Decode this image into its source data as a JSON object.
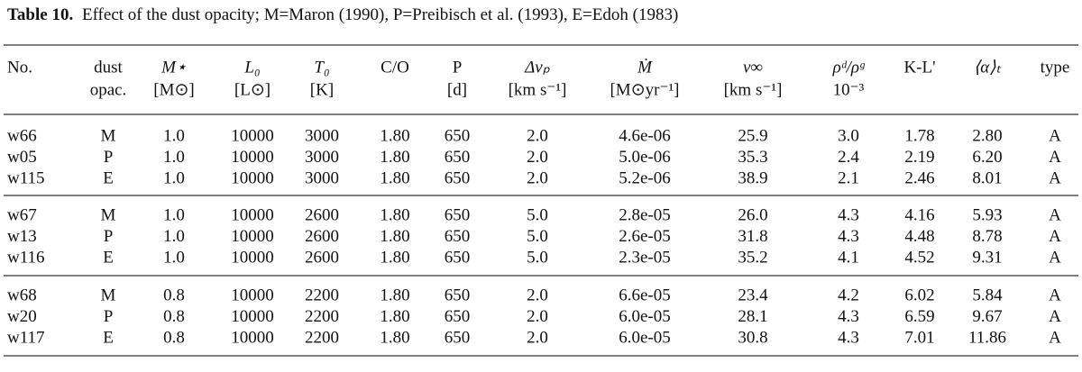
{
  "caption": {
    "label": "Table 10.",
    "text": "Effect of the dust opacity; M=Maron (1990), P=Preibisch et al. (1993), E=Edoh (1983)"
  },
  "table": {
    "header": [
      [
        "No.",
        ""
      ],
      [
        "dust",
        "opac."
      ],
      [
        "M⋆",
        "[M⊙]"
      ],
      [
        "L₀",
        "[L⊙]"
      ],
      [
        "T₀",
        "[K]"
      ],
      [
        "C/O",
        ""
      ],
      [
        "P",
        "[d]"
      ],
      [
        "Δvₚ",
        "[km s⁻¹]"
      ],
      [
        "Ṁ",
        "[M⊙yr⁻¹]"
      ],
      [
        "v∞",
        "[km s⁻¹]"
      ],
      [
        "ρᵈ/ρᵍ",
        "10⁻³"
      ],
      [
        "K-L'",
        ""
      ],
      [
        "⟨α⟩ₜ",
        ""
      ],
      [
        "type",
        ""
      ]
    ],
    "groups": [
      [
        [
          "w66",
          "M",
          "1.0",
          "10000",
          "3000",
          "1.80",
          "650",
          "2.0",
          "4.6e-06",
          "25.9",
          "3.0",
          "1.78",
          "2.80",
          "A"
        ],
        [
          "w05",
          "P",
          "1.0",
          "10000",
          "3000",
          "1.80",
          "650",
          "2.0",
          "5.0e-06",
          "35.3",
          "2.4",
          "2.19",
          "6.20",
          "A"
        ],
        [
          "w115",
          "E",
          "1.0",
          "10000",
          "3000",
          "1.80",
          "650",
          "2.0",
          "5.2e-06",
          "38.9",
          "2.1",
          "2.46",
          "8.01",
          "A"
        ]
      ],
      [
        [
          "w67",
          "M",
          "1.0",
          "10000",
          "2600",
          "1.80",
          "650",
          "5.0",
          "2.8e-05",
          "26.0",
          "4.3",
          "4.16",
          "5.93",
          "A"
        ],
        [
          "w13",
          "P",
          "1.0",
          "10000",
          "2600",
          "1.80",
          "650",
          "5.0",
          "2.6e-05",
          "31.8",
          "4.3",
          "4.48",
          "8.78",
          "A"
        ],
        [
          "w116",
          "E",
          "1.0",
          "10000",
          "2600",
          "1.80",
          "650",
          "5.0",
          "2.3e-05",
          "35.2",
          "4.1",
          "4.52",
          "9.31",
          "A"
        ]
      ],
      [
        [
          "w68",
          "M",
          "0.8",
          "10000",
          "2200",
          "1.80",
          "650",
          "2.0",
          "6.6e-05",
          "23.4",
          "4.2",
          "6.02",
          "5.84",
          "A"
        ],
        [
          "w20",
          "P",
          "0.8",
          "10000",
          "2200",
          "1.80",
          "650",
          "2.0",
          "6.0e-05",
          "28.1",
          "4.3",
          "6.59",
          "9.67",
          "A"
        ],
        [
          "w117",
          "E",
          "0.8",
          "10000",
          "2200",
          "1.80",
          "650",
          "2.0",
          "6.0e-05",
          "30.8",
          "4.3",
          "7.01",
          "11.86",
          "A"
        ]
      ]
    ]
  }
}
